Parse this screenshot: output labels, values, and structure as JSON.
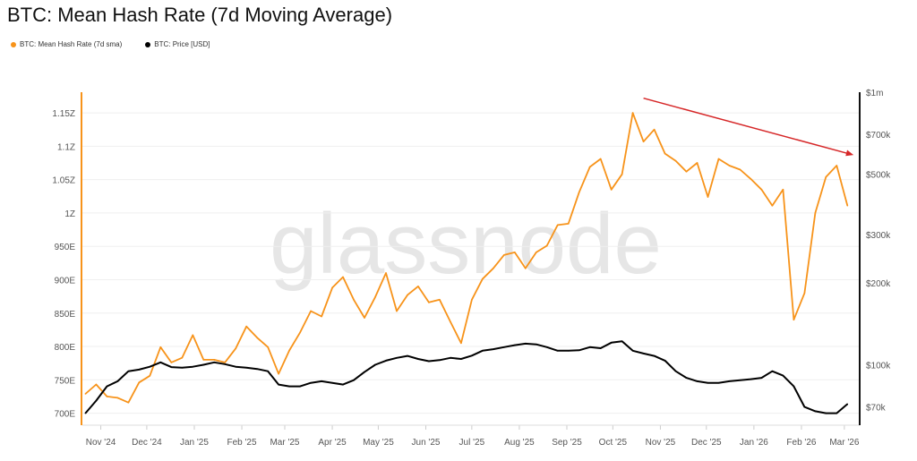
{
  "chart_data": {
    "type": "line",
    "title": "BTC: Mean Hash Rate (7d Moving Average)",
    "watermark": "glassnode",
    "legend_position": "top-left",
    "grid": true,
    "x": [
      "2024-10-22",
      "2024-10-29",
      "2024-11-05",
      "2024-11-12",
      "2024-11-19",
      "2024-11-26",
      "2024-12-03",
      "2024-12-10",
      "2024-12-17",
      "2024-12-24",
      "2024-12-31",
      "2025-01-07",
      "2025-01-14",
      "2025-01-21",
      "2025-01-28",
      "2025-02-04",
      "2025-02-11",
      "2025-02-18",
      "2025-02-25",
      "2025-03-04",
      "2025-03-11",
      "2025-03-18",
      "2025-03-25",
      "2025-04-01",
      "2025-04-08",
      "2025-04-15",
      "2025-04-22",
      "2025-04-29",
      "2025-05-06",
      "2025-05-13",
      "2025-05-20",
      "2025-05-27",
      "2025-06-03",
      "2025-06-10",
      "2025-06-17",
      "2025-06-24",
      "2025-07-01",
      "2025-07-08",
      "2025-07-15",
      "2025-07-22",
      "2025-07-29",
      "2025-08-05",
      "2025-08-12",
      "2025-08-19",
      "2025-08-26",
      "2025-09-02",
      "2025-09-09",
      "2025-09-16",
      "2025-09-23",
      "2025-09-30",
      "2025-10-07",
      "2025-10-14",
      "2025-10-21",
      "2025-10-28",
      "2025-11-04",
      "2025-11-11",
      "2025-11-18",
      "2025-11-25",
      "2025-12-02",
      "2025-12-09",
      "2025-12-16",
      "2025-12-23",
      "2025-12-30",
      "2026-01-06",
      "2026-01-13",
      "2026-01-20",
      "2026-01-27",
      "2026-02-03",
      "2026-02-10",
      "2026-02-17",
      "2026-02-24",
      "2026-03-03"
    ],
    "xlim": [
      "2024-10-20",
      "2026-03-11"
    ],
    "x_tick_labels": [
      {
        "date": "2024-11-01",
        "label": "Nov '24"
      },
      {
        "date": "2024-12-01",
        "label": "Dec '24"
      },
      {
        "date": "2025-01-01",
        "label": "Jan '25"
      },
      {
        "date": "2025-02-01",
        "label": "Feb '25"
      },
      {
        "date": "2025-03-01",
        "label": "Mar '25"
      },
      {
        "date": "2025-04-01",
        "label": "Apr '25"
      },
      {
        "date": "2025-05-01",
        "label": "May '25"
      },
      {
        "date": "2025-06-01",
        "label": "Jun '25"
      },
      {
        "date": "2025-07-01",
        "label": "Jul '25"
      },
      {
        "date": "2025-08-01",
        "label": "Aug '25"
      },
      {
        "date": "2025-09-01",
        "label": "Sep '25"
      },
      {
        "date": "2025-10-01",
        "label": "Oct '25"
      },
      {
        "date": "2025-11-01",
        "label": "Nov '25"
      },
      {
        "date": "2025-12-01",
        "label": "Dec '25"
      },
      {
        "date": "2026-01-01",
        "label": "Jan '26"
      },
      {
        "date": "2026-02-01",
        "label": "Feb '26"
      },
      {
        "date": "2026-03-01",
        "label": "Mar '26"
      }
    ],
    "y_left": {
      "unit": "EH/s",
      "ylim": [
        682,
        1181
      ],
      "scale": "linear",
      "color": "#f7931a",
      "ticks": [
        {
          "v": 700,
          "label": "700E"
        },
        {
          "v": 750,
          "label": "750E"
        },
        {
          "v": 800,
          "label": "800E"
        },
        {
          "v": 850,
          "label": "850E"
        },
        {
          "v": 900,
          "label": "900E"
        },
        {
          "v": 950,
          "label": "950E"
        },
        {
          "v": 1000,
          "label": "1Z"
        },
        {
          "v": 1050,
          "label": "1.05Z"
        },
        {
          "v": 1100,
          "label": "1.1Z"
        },
        {
          "v": 1150,
          "label": "1.15Z"
        }
      ]
    },
    "y_right": {
      "unit": "USD",
      "ylim": [
        60000,
        1000000
      ],
      "scale": "log",
      "color": "#000000",
      "ticks": [
        {
          "v": 70000,
          "label": "$70k"
        },
        {
          "v": 100000,
          "label": "$100k"
        },
        {
          "v": 200000,
          "label": "$200k"
        },
        {
          "v": 300000,
          "label": "$300k"
        },
        {
          "v": 500000,
          "label": "$500k"
        },
        {
          "v": 700000,
          "label": "$700k"
        },
        {
          "v": 1000000,
          "label": "$1m"
        }
      ]
    },
    "series": [
      {
        "name": "BTC: Mean Hash Rate (7d sma)",
        "axis": "left",
        "color": "#f7931a",
        "values": [
          729,
          743,
          725,
          723,
          716,
          746,
          756,
          799,
          776,
          783,
          817,
          780,
          780,
          776,
          797,
          830,
          813,
          799,
          759,
          794,
          821,
          853,
          845,
          888,
          904,
          870,
          843,
          874,
          910,
          853,
          877,
          890,
          866,
          870,
          837,
          805,
          870,
          901,
          917,
          937,
          941,
          917,
          941,
          951,
          982,
          984,
          1031,
          1069,
          1081,
          1035,
          1058,
          1150,
          1107,
          1125,
          1089,
          1078,
          1062,
          1075,
          1024,
          1081,
          1071,
          1065,
          1051,
          1035,
          1011,
          1035,
          840,
          880,
          1000,
          1054,
          1071,
          1011
        ]
      },
      {
        "name": "BTC: Price [USD]",
        "axis": "right",
        "color": "#000000",
        "values": [
          66400,
          73800,
          83300,
          87000,
          94700,
          96000,
          98300,
          102000,
          98000,
          97500,
          98300,
          100000,
          102000,
          100500,
          98300,
          97500,
          96500,
          94700,
          84600,
          83300,
          83300,
          85800,
          87000,
          85800,
          84600,
          87800,
          94000,
          100000,
          103500,
          106000,
          107700,
          105000,
          103000,
          104000,
          106000,
          105000,
          108000,
          112600,
          114000,
          116000,
          118000,
          119500,
          118800,
          116000,
          112600,
          112600,
          113000,
          116000,
          115000,
          120500,
          122000,
          112600,
          110000,
          107700,
          103500,
          94700,
          89500,
          87000,
          85800,
          85800,
          87000,
          87800,
          88500,
          89500,
          94700,
          91200,
          83300,
          70000,
          67500,
          66400,
          66400,
          71700
        ]
      }
    ],
    "annotations": [
      {
        "type": "arrow",
        "color": "#d62728",
        "from": {
          "date": "2025-10-21",
          "value": 1172
        },
        "to": {
          "date": "2026-03-07",
          "value": 1087
        }
      }
    ]
  }
}
